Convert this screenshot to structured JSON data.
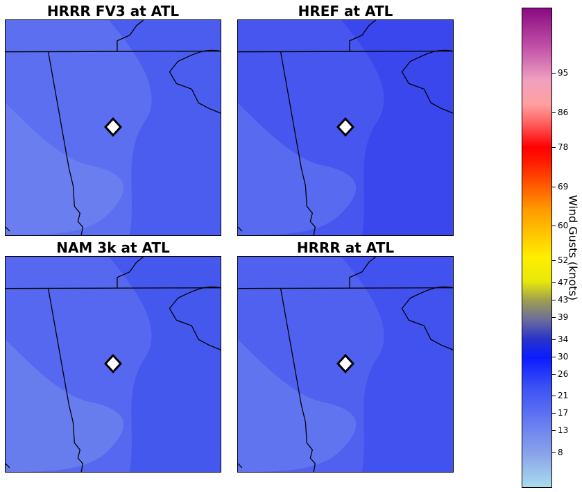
{
  "panels": [
    {
      "title": "HRRR FV3 at ATL",
      "base_color": "#5b6ff0",
      "dark_color": "#3848ee",
      "light_color": "#7a8df0"
    },
    {
      "title": "HREF at ATL",
      "base_color": "#4656ef",
      "dark_color": "#2c36ea",
      "light_color": "#6a7ef0"
    },
    {
      "title": "NAM 3k at ATL",
      "base_color": "#5568ef",
      "dark_color": "#3444ee",
      "light_color": "#7a92ee"
    },
    {
      "title": "HRRR at ATL",
      "base_color": "#5061f0",
      "dark_color": "#3040ee",
      "light_color": "#7088ee"
    }
  ],
  "colorbar": {
    "label": "Wind Gusts (knots)",
    "ticks": [
      "8",
      "13",
      "17",
      "21",
      "26",
      "30",
      "34",
      "39",
      "43",
      "47",
      "52",
      "60",
      "69",
      "78",
      "86",
      "95"
    ]
  },
  "marker": {
    "icon": "diamond-marker-icon",
    "fill": "#ffffff",
    "stroke": "#000000"
  }
}
